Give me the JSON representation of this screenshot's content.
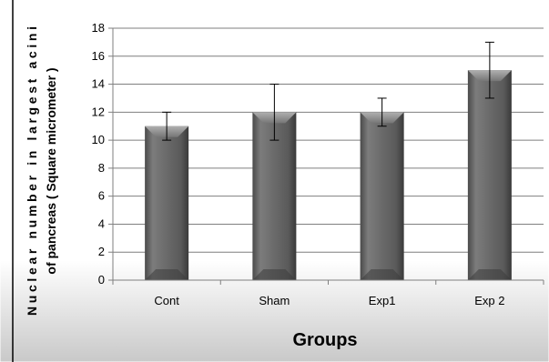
{
  "chart_data": {
    "type": "bar",
    "categories": [
      "Cont",
      "Sham",
      "Exp1",
      "Exp 2"
    ],
    "values": [
      11,
      12,
      12,
      15
    ],
    "error_low": [
      10,
      10,
      11,
      13
    ],
    "error_high": [
      12,
      14,
      13,
      17
    ],
    "xlabel": "Groups",
    "ylabel_line1": "Nuclear number in largest acini",
    "ylabel_line2": "of pancreas ( Square micrometer )",
    "ylim": [
      0,
      18
    ],
    "yticks": [
      "0",
      "2",
      "4",
      "6",
      "8",
      "10",
      "12",
      "14",
      "16",
      "18"
    ],
    "grid": true,
    "legend": "none",
    "colors": {
      "bar": "#6e6e6e",
      "bar_light": "#a8a8a8",
      "bar_dark": "#3c3c3c",
      "grid": "#7f7f7f",
      "background_top": "#ffffff",
      "background_bottom": "#c9c9c9"
    }
  }
}
